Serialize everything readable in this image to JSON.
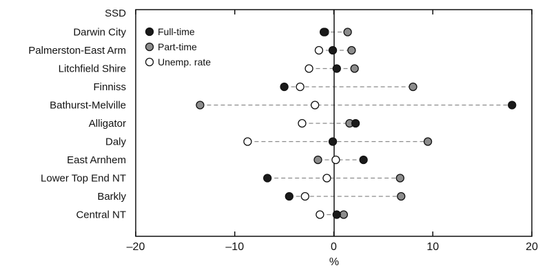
{
  "chart_data": {
    "type": "scatter",
    "orientation": "horizontal-dot-plot",
    "header_label": "SSD",
    "categories": [
      "Darwin City",
      "Palmerston-East Arm",
      "Litchfield Shire",
      "Finniss",
      "Bathurst-Melville",
      "Alligator",
      "Daly",
      "East Arnhem",
      "Lower Top End NT",
      "Barkly",
      "Central NT"
    ],
    "series": [
      {
        "name": "Full-time",
        "marker": "filled-black",
        "color": "#1a1a1a",
        "values": [
          -1.0,
          -0.1,
          0.3,
          -5.0,
          18.0,
          2.2,
          -0.1,
          3.0,
          -6.7,
          -4.5,
          0.3
        ]
      },
      {
        "name": "Part-time",
        "marker": "filled-grey",
        "color": "#8c8c8c",
        "values": [
          1.4,
          1.8,
          2.1,
          8.0,
          -13.5,
          1.6,
          9.5,
          -1.6,
          6.7,
          6.8,
          1.0
        ]
      },
      {
        "name": "Unemp. rate",
        "marker": "open-white",
        "color": "#ffffff",
        "values": [
          -0.9,
          -1.5,
          -2.5,
          -3.4,
          -1.9,
          -3.2,
          -8.7,
          0.2,
          -0.7,
          -2.9,
          -1.4
        ]
      }
    ],
    "connector": "dashed-grey",
    "xlabel": "%",
    "ylabel": "",
    "xlim": [
      -20,
      20
    ],
    "xticks": [
      "–20",
      "–10",
      "0",
      "10",
      "20"
    ],
    "grid": false,
    "legend_position": "top-left"
  }
}
